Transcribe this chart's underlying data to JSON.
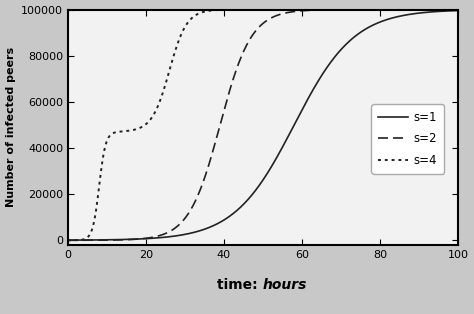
{
  "title": "",
  "xlabel_normal": "time: ",
  "xlabel_italic": "hours",
  "ylabel": "Number of infected peers",
  "xlim": [
    0,
    100
  ],
  "ylim": [
    -2000,
    100000
  ],
  "xticks": [
    0,
    20,
    40,
    60,
    80,
    100
  ],
  "yticks": [
    0,
    20000,
    40000,
    60000,
    80000,
    100000
  ],
  "N": 100000,
  "curves": [
    {
      "label": "s=1",
      "linestyle": "solid",
      "linewidth": 1.2,
      "color": "#222222",
      "beta": 0.13,
      "midpoint": 58
    },
    {
      "label": "s=2",
      "linestyle": "dashed",
      "linewidth": 1.2,
      "color": "#222222",
      "beta": 0.25,
      "midpoint": 39
    },
    {
      "label": "s=4",
      "linestyle": "dotted",
      "linewidth": 1.4,
      "color": "#222222",
      "phase1_beta": 1.2,
      "phase1_mid": 8,
      "phase1_max": 47000,
      "phase2_beta": 0.45,
      "phase2_mid": 26
    }
  ],
  "legend_loc": "center right",
  "figsize": [
    4.74,
    3.14
  ],
  "dpi": 100,
  "plot_bg": "#f2f2f2",
  "fig_bg": "#c8c8c8"
}
